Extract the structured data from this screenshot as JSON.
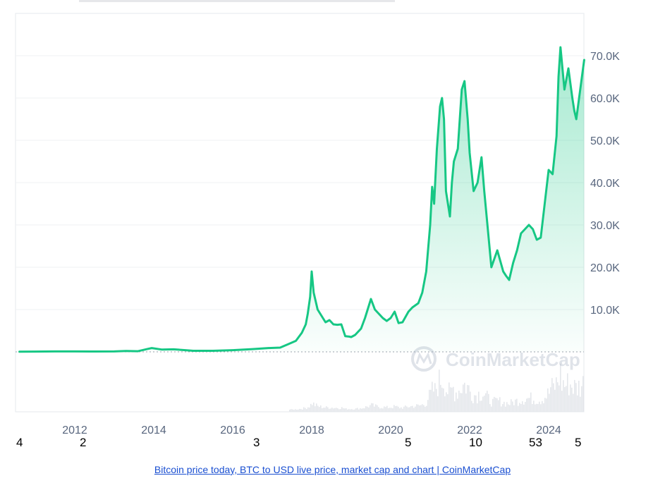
{
  "chart_data": {
    "type": "area",
    "title": "",
    "xlabel": "",
    "ylabel": "",
    "x_ticks": [
      "2012",
      "2014",
      "2016",
      "2018",
      "2020",
      "2022",
      "2024"
    ],
    "y_ticks": [
      "10.0K",
      "20.0K",
      "30.0K",
      "40.0K",
      "50.0K",
      "60.0K",
      "70.0K"
    ],
    "ylim": [
      0,
      80000
    ],
    "xlim": [
      2010.6,
      2024.9
    ],
    "grid": true,
    "line_color": "#16c784",
    "volume_color": "#e4e7eb",
    "watermark": "CoinMarketCap",
    "series": [
      {
        "x": [
          2010.6,
          2011.0,
          2011.5,
          2012.0,
          2012.5,
          2013.0,
          2013.3,
          2013.6,
          2013.85,
          2013.95,
          2014.2,
          2014.5,
          2014.8,
          2015.0,
          2015.5,
          2016.0,
          2016.5,
          2016.9,
          2017.2,
          2017.4,
          2017.6,
          2017.75,
          2017.85,
          2017.9,
          2017.96,
          2018.0,
          2018.05,
          2018.15,
          2018.25,
          2018.35,
          2018.45,
          2018.55,
          2018.65,
          2018.75,
          2018.85,
          2018.95,
          2019.0,
          2019.1,
          2019.25,
          2019.35,
          2019.45,
          2019.5,
          2019.6,
          2019.7,
          2019.8,
          2019.9,
          2020.0,
          2020.1,
          2020.2,
          2020.3,
          2020.45,
          2020.55,
          2020.7,
          2020.8,
          2020.9,
          2021.0,
          2021.05,
          2021.1,
          2021.17,
          2021.25,
          2021.3,
          2021.35,
          2021.4,
          2021.45,
          2021.5,
          2021.55,
          2021.6,
          2021.7,
          2021.8,
          2021.87,
          2021.95,
          2022.0,
          2022.1,
          2022.2,
          2022.3,
          2022.37,
          2022.45,
          2022.55,
          2022.7,
          2022.85,
          2022.92,
          2023.0,
          2023.1,
          2023.2,
          2023.3,
          2023.4,
          2023.5,
          2023.6,
          2023.7,
          2023.8,
          2023.9,
          2024.0,
          2024.1,
          2024.2,
          2024.25,
          2024.3,
          2024.4,
          2024.5,
          2024.6,
          2024.65,
          2024.7,
          2024.8,
          2024.9
        ],
        "y": [
          30,
          60,
          100,
          100,
          80,
          100,
          200,
          150,
          700,
          900,
          550,
          600,
          400,
          250,
          250,
          400,
          650,
          900,
          1000,
          1800,
          2600,
          4500,
          6500,
          9000,
          13000,
          19000,
          14000,
          10000,
          8500,
          7000,
          7500,
          6500,
          6400,
          6500,
          3700,
          3600,
          3500,
          4000,
          5500,
          8000,
          11000,
          12500,
          10000,
          9000,
          8000,
          7300,
          8000,
          9500,
          6800,
          7000,
          9500,
          10500,
          11500,
          14000,
          19000,
          30000,
          39000,
          35000,
          48000,
          58000,
          60000,
          55000,
          38000,
          35000,
          32000,
          40000,
          45000,
          48000,
          62000,
          64000,
          55000,
          47000,
          38000,
          40000,
          46000,
          38000,
          30000,
          20000,
          24000,
          19000,
          18000,
          17000,
          21000,
          24000,
          28000,
          29000,
          30000,
          29000,
          26500,
          27000,
          35000,
          43000,
          42000,
          51000,
          65000,
          72000,
          62000,
          67000,
          60000,
          57000,
          55000,
          62000,
          69000
        ]
      }
    ]
  },
  "extra_labels": [
    "4",
    "2",
    "3",
    "5",
    "10",
    "53",
    "5"
  ],
  "caption": "Bitcoin price today, BTC to USD live price, market cap and chart | CoinMarketCap"
}
